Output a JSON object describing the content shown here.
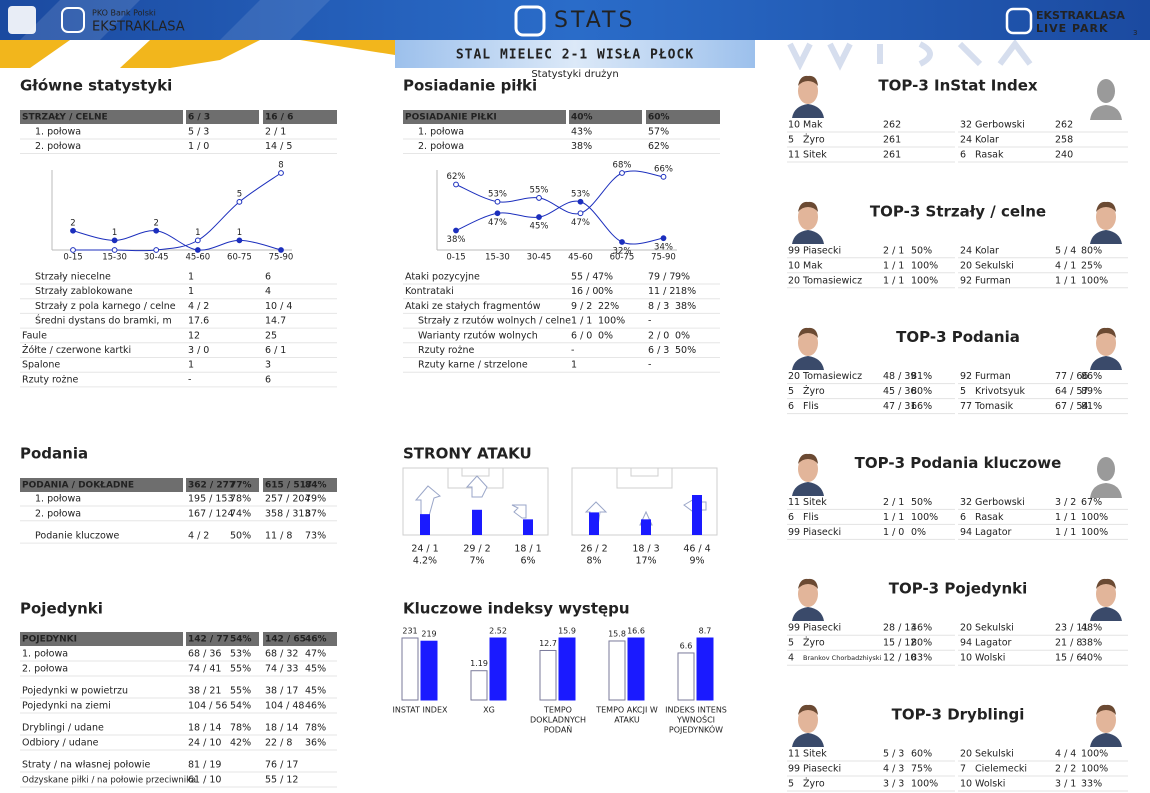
{
  "header": {
    "bank": "PKO Bank Polski",
    "league": "EKSTRAKLASA",
    "stats": "STATS",
    "live1": "EKSTRAKLASA",
    "live2": "LIVE PARK",
    "page": "3",
    "match": "STAL MIELEC 2-1 WISŁA PŁOCK",
    "subtitle": "Statystyki drużyn"
  },
  "main_stats": {
    "title": "Główne statystyki",
    "table": {
      "header": [
        "STRZAŁY / CELNE",
        "6 / 3",
        "16 / 6"
      ],
      "rows": [
        [
          "1. połowa",
          "5 / 3",
          "2 / 1"
        ],
        [
          "2. połowa",
          "1 / 0",
          "14 / 5"
        ]
      ]
    },
    "chart": {
      "type": "line",
      "categories": [
        "0-15",
        "15-30",
        "30-45",
        "45-60",
        "60-75",
        "75-90"
      ],
      "series": [
        {
          "color": "#1c2fbd",
          "marker": "filled",
          "values": [
            2,
            1,
            2,
            0,
            1,
            0
          ]
        },
        {
          "color": "#1c2fbd",
          "marker": "open",
          "values": [
            0,
            0,
            0,
            1,
            5,
            8
          ]
        }
      ]
    },
    "table2": {
      "rows": [
        [
          "Strzały niecelne",
          "1",
          "6"
        ],
        [
          "Strzały zablokowane",
          "1",
          "4"
        ],
        [
          "Strzały z pola karnego / celne",
          "4 / 2",
          "10 / 4"
        ],
        [
          "Średni dystans do bramki, m",
          "17.6",
          "14.7"
        ],
        [
          "Faule",
          "12",
          "25"
        ],
        [
          "Żółte / czerwone kartki",
          "3 / 0",
          "6 / 1"
        ],
        [
          "Spalone",
          "1",
          "3"
        ],
        [
          "Rzuty rożne",
          "-",
          "6"
        ]
      ]
    }
  },
  "passes": {
    "title": "Podania",
    "header": [
      "PODANIA / DOKŁADNE",
      "362 / 277",
      "77%",
      "615 / 517",
      "84%"
    ],
    "groups": [
      [
        [
          "1. połowa",
          "195 / 153",
          "78%",
          "257 / 204",
          "79%"
        ],
        [
          "2. połowa",
          "167 / 124",
          "74%",
          "358 / 313",
          "87%"
        ]
      ],
      [
        [
          "Podanie kluczowe",
          "4 / 2",
          "50%",
          "11 / 8",
          "73%"
        ]
      ]
    ]
  },
  "duels": {
    "title": "Pojedynki",
    "header": [
      "POJEDYNKI",
      "142 / 77",
      "54%",
      "142 / 65",
      "46%"
    ],
    "groups": [
      [
        [
          "1. połowa",
          "68 / 36",
          "53%",
          "68 / 32",
          "47%"
        ],
        [
          "2. połowa",
          "74 / 41",
          "55%",
          "74 / 33",
          "45%"
        ]
      ],
      [
        [
          "Pojedynki w powietrzu",
          "38 / 21",
          "55%",
          "38 / 17",
          "45%"
        ],
        [
          "Pojedynki na ziemi",
          "104 / 56",
          "54%",
          "104 / 48",
          "46%"
        ]
      ],
      [
        [
          "Dryblingi / udane",
          "18 / 14",
          "78%",
          "18 / 14",
          "78%"
        ],
        [
          "Odbiory / udane",
          "24 / 10",
          "42%",
          "22 / 8",
          "36%"
        ]
      ],
      [
        [
          "Straty / na własnej połowie",
          "81 / 19",
          null,
          "76 / 17",
          null
        ],
        [
          "Odzyskane piłki / na połowie przeciwnika",
          "61 / 10",
          null,
          "55 / 12",
          null
        ]
      ]
    ]
  },
  "possession": {
    "title": "Posiadanie piłki",
    "table": {
      "header": [
        "POSIADANIE PIŁKI",
        "40%",
        "60%"
      ],
      "rows": [
        [
          "1. połowa",
          "43%",
          "57%"
        ],
        [
          "2. połowa",
          "38%",
          "62%"
        ]
      ]
    },
    "chart": {
      "type": "line",
      "categories": [
        "0-15",
        "15-30",
        "30-45",
        "45-60",
        "60-75",
        "75-90"
      ],
      "series": [
        {
          "color": "#1c2fbd",
          "marker": "filled",
          "values": [
            38,
            47,
            45,
            53,
            32,
            34
          ],
          "value_labels": [
            "38%",
            "47%",
            "45%",
            "53%",
            "32%",
            "34%"
          ]
        },
        {
          "color": "#1c2fbd",
          "marker": "open",
          "values": [
            62,
            53,
            55,
            47,
            68,
            66
          ],
          "value_labels": [
            "62%",
            "53%",
            "55%",
            "47%",
            "68%",
            "66%"
          ]
        }
      ]
    },
    "table2": {
      "rows": [
        [
          "Ataki pozycyjne",
          "55 / 4",
          "7%",
          "79 / 7",
          "9%"
        ],
        [
          "Kontrataki",
          "16 / 0",
          "0%",
          "11 / 2",
          "18%"
        ],
        [
          "Ataki ze stałych fragmentów",
          "9 / 2",
          "22%",
          "8 / 3",
          "38%"
        ],
        [
          "Strzały z rzutów wolnych / celne",
          "1 / 1",
          "100%",
          "-",
          null
        ],
        [
          "Warianty rzutów wolnych",
          "6 / 0",
          "0%",
          "2 / 0",
          "0%"
        ],
        [
          "Rzuty rożne",
          "-",
          null,
          "6 / 3",
          "50%"
        ],
        [
          "Rzuty karne / strzelone",
          "1",
          null,
          "-",
          null
        ]
      ]
    }
  },
  "attack_sides": {
    "title": "STRONY ATAKU",
    "color": "#1a1aff",
    "teams": [
      [
        {
          "attacks": 24,
          "label": "24 / 1",
          "pct": "4.2%"
        },
        {
          "attacks": 29,
          "label": "29 / 2",
          "pct": "7%"
        },
        {
          "attacks": 18,
          "label": "18 / 1",
          "pct": "6%"
        }
      ],
      [
        {
          "attacks": 26,
          "label": "26 / 2",
          "pct": "8%"
        },
        {
          "attacks": 18,
          "label": "18 / 3",
          "pct": "17%"
        },
        {
          "attacks": 46,
          "label": "46 / 4",
          "pct": "9%"
        }
      ]
    ]
  },
  "indices": {
    "title": "Kluczowe indeksy występu",
    "colors": [
      "#ffffff",
      "#1a1aff"
    ],
    "items": [
      {
        "label": [
          "INSTAT INDEX"
        ],
        "values": [
          231,
          219
        ]
      },
      {
        "label": [
          "XG"
        ],
        "values": [
          1.19,
          2.52
        ]
      },
      {
        "label": [
          "TEMPO",
          "DOKLADNYCH",
          "PODAŃ"
        ],
        "values": [
          12.7,
          15.9
        ]
      },
      {
        "label": [
          "TEMPO AKCJI W",
          "ATAKU"
        ],
        "values": [
          15.8,
          16.6
        ]
      },
      {
        "label": [
          "INDEKS INTENS",
          "YWNOŚCI",
          "POJEDYNKÓW"
        ],
        "values": [
          6.6,
          8.7
        ]
      }
    ]
  },
  "top3": [
    {
      "title": "TOP-3 InStat Index",
      "rows": [
        [
          "10",
          "Mak",
          "262",
          null,
          "32",
          "Gerbowski",
          "262",
          null
        ],
        [
          "5",
          "Żyro",
          "261",
          null,
          "24",
          "Kolar",
          "258",
          null
        ],
        [
          "11",
          "Sitek",
          "261",
          null,
          "6",
          "Rasak",
          "240",
          null
        ]
      ]
    },
    {
      "title": "TOP-3 Strzały / celne",
      "rows": [
        [
          "99",
          "Piasecki",
          "2 / 1",
          "50%",
          "24",
          "Kolar",
          "5 / 4",
          "80%"
        ],
        [
          "10",
          "Mak",
          "1 / 1",
          "100%",
          "20",
          "Sekulski",
          "4 / 1",
          "25%"
        ],
        [
          "20",
          "Tomasiewicz",
          "1 / 1",
          "100%",
          "92",
          "Furman",
          "1 / 1",
          "100%"
        ]
      ]
    },
    {
      "title": "TOP-3 Podania",
      "rows": [
        [
          "20",
          "Tomasiewicz",
          "48 / 39",
          "81%",
          "92",
          "Furman",
          "77 / 66",
          "86%"
        ],
        [
          "5",
          "Żyro",
          "45 / 36",
          "80%",
          "5",
          "Krivotsyuk",
          "64 / 57",
          "89%"
        ],
        [
          "6",
          "Flis",
          "47 / 31",
          "66%",
          "77",
          "Tomasik",
          "67 / 54",
          "81%"
        ]
      ]
    },
    {
      "title": "TOP-3 Podania kluczowe",
      "rows": [
        [
          "11",
          "Sitek",
          "2 / 1",
          "50%",
          "32",
          "Gerbowski",
          "3 / 2",
          "67%"
        ],
        [
          "6",
          "Flis",
          "1 / 1",
          "100%",
          "6",
          "Rasak",
          "1 / 1",
          "100%"
        ],
        [
          "99",
          "Piasecki",
          "1 / 0",
          "0%",
          "94",
          "Lagator",
          "1 / 1",
          "100%"
        ]
      ]
    },
    {
      "title": "TOP-3 Pojedynki",
      "rows": [
        [
          "99",
          "Piasecki",
          "28 / 13",
          "46%",
          "20",
          "Sekulski",
          "23 / 11",
          "48%"
        ],
        [
          "5",
          "Żyro",
          "15 / 12",
          "80%",
          "94",
          "Lagator",
          "21 / 8",
          "38%"
        ],
        [
          "4",
          "Brankov Chorbadzhiyski",
          "12 / 10",
          "83%",
          "10",
          "Wolski",
          "15 / 6",
          "40%"
        ]
      ]
    },
    {
      "title": "TOP-3 Dryblingi",
      "rows": [
        [
          "11",
          "Sitek",
          "5 / 3",
          "60%",
          "20",
          "Sekulski",
          "4 / 4",
          "100%"
        ],
        [
          "99",
          "Piasecki",
          "4 / 3",
          "75%",
          "7",
          "Cielemecki",
          "2 / 2",
          "100%"
        ],
        [
          "5",
          "Żyro",
          "3 / 3",
          "100%",
          "10",
          "Wolski",
          "3 / 1",
          "33%"
        ]
      ]
    }
  ]
}
